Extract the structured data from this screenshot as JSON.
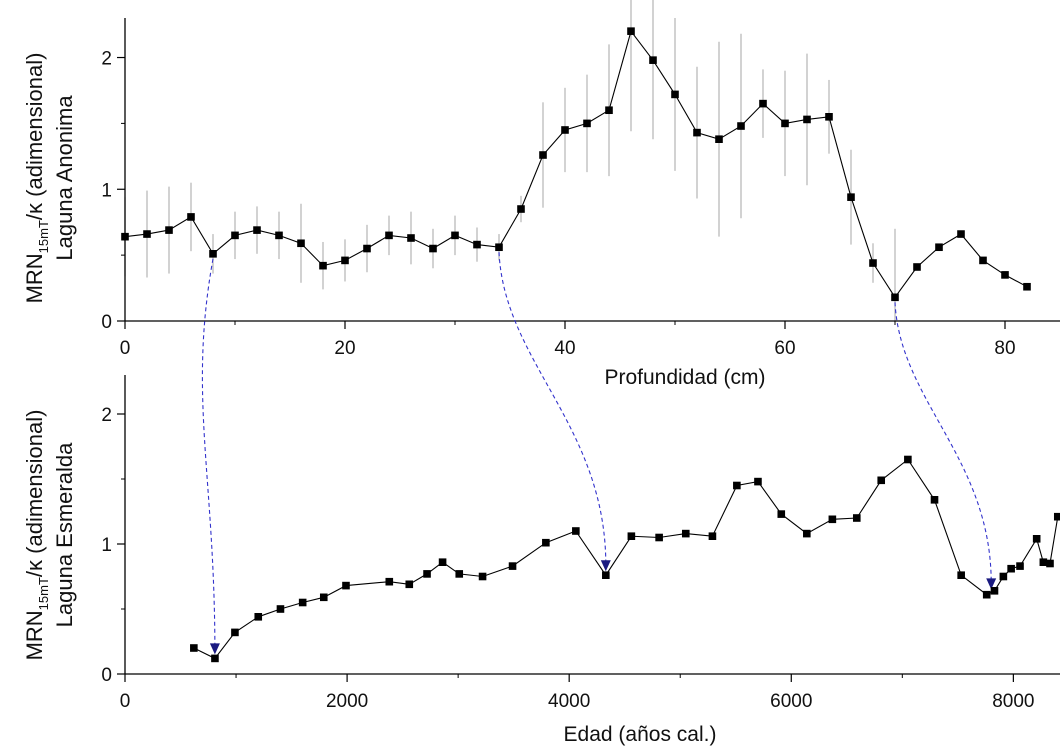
{
  "chart_data": [
    {
      "type": "line",
      "name": "top-panel",
      "ylabel": {
        "main": "MRN",
        "sub": "15mT",
        "rest": "/κ (adimensional)",
        "line2": "Laguna Anonima"
      },
      "xlabel": "Profundidad (cm)",
      "xlim": [
        0,
        85
      ],
      "ylim": [
        0,
        2.3
      ],
      "xticks": [
        0,
        20,
        40,
        60,
        80
      ],
      "xtick_labels": [
        "0",
        "20",
        "40",
        "60",
        "80"
      ],
      "yticks": [
        0,
        1,
        2
      ],
      "ytick_labels": [
        "0",
        "1",
        "2"
      ],
      "series": [
        {
          "x": [
            0,
            2,
            4,
            6,
            8,
            10,
            12,
            14,
            16,
            18,
            20,
            22,
            24,
            26,
            28,
            30,
            32,
            34,
            36,
            38,
            40,
            42,
            44,
            46,
            48,
            50,
            52,
            54,
            56,
            58,
            60,
            62,
            64,
            66,
            68,
            70,
            72,
            74,
            76,
            78,
            80,
            82
          ],
          "y": [
            0.64,
            0.66,
            0.69,
            0.79,
            0.51,
            0.65,
            0.69,
            0.65,
            0.59,
            0.42,
            0.46,
            0.55,
            0.65,
            0.63,
            0.55,
            0.65,
            0.58,
            0.56,
            0.85,
            1.26,
            1.45,
            1.5,
            1.6,
            2.2,
            1.98,
            1.72,
            1.43,
            1.38,
            1.48,
            1.65,
            1.5,
            1.53,
            1.55,
            0.94,
            0.44,
            0.18,
            0.41,
            0.56,
            0.66,
            0.46,
            0.35,
            0.26
          ],
          "err": [
            0.3,
            0.33,
            0.33,
            0.26,
            0.15,
            0.18,
            0.18,
            0.18,
            0.3,
            0.18,
            0.16,
            0.18,
            0.15,
            0.2,
            0.15,
            0.15,
            0.13,
            0.1,
            0.1,
            0.4,
            0.32,
            0.37,
            0.5,
            0.76,
            0.6,
            0.58,
            0.5,
            0.74,
            0.7,
            0.26,
            0.4,
            0.5,
            0.28,
            0.36,
            0.15,
            0.52,
            0,
            0,
            0,
            0,
            0,
            0
          ]
        }
      ]
    },
    {
      "type": "line",
      "name": "bottom-panel",
      "ylabel": {
        "main": "MRN",
        "sub": "15mT",
        "rest": "/κ (adimensional)",
        "line2": "Laguna Esmeralda"
      },
      "xlabel": "Edad  (años cal.)",
      "xlim": [
        0,
        8420
      ],
      "ylim": [
        0,
        2.3
      ],
      "xticks": [
        0,
        2000,
        4000,
        6000,
        8000
      ],
      "xtick_labels": [
        "0",
        "2000",
        "4000",
        "6000",
        "8000"
      ],
      "yticks": [
        0,
        1,
        2
      ],
      "ytick_labels": [
        "0",
        "1",
        "2"
      ],
      "series": [
        {
          "x": [
            620,
            810,
            990,
            1200,
            1400,
            1600,
            1790,
            1990,
            2380,
            2560,
            2720,
            2860,
            3010,
            3220,
            3490,
            3790,
            4060,
            4330,
            4560,
            4810,
            5050,
            5290,
            5510,
            5700,
            5910,
            6140,
            6370,
            6590,
            6810,
            7050,
            7290,
            7530,
            7760,
            7830,
            7910,
            7980,
            8060,
            8210,
            8270,
            8330,
            8400
          ],
          "y": [
            0.2,
            0.12,
            0.32,
            0.44,
            0.5,
            0.55,
            0.59,
            0.68,
            0.71,
            0.69,
            0.77,
            0.86,
            0.77,
            0.75,
            0.83,
            1.01,
            1.1,
            0.76,
            1.06,
            1.05,
            1.08,
            1.06,
            1.45,
            1.48,
            1.23,
            1.08,
            1.19,
            1.2,
            1.49,
            1.65,
            1.34,
            0.76,
            0.61,
            0.64,
            0.75,
            0.81,
            0.83,
            1.04,
            0.86,
            0.85,
            1.21
          ]
        }
      ]
    }
  ],
  "links": [
    {
      "from_x": 8,
      "from_y": 0.51,
      "to_x": 810,
      "to_y": 0.12
    },
    {
      "from_x": 34,
      "from_y": 0.56,
      "to_x": 4330,
      "to_y": 0.76
    },
    {
      "from_x": 70,
      "from_y": 0.18,
      "to_x": 7800,
      "to_y": 0.62
    }
  ],
  "colors": {
    "marker": "#000000",
    "line": "#000000",
    "errorbar": "#b5b5b5",
    "link": "#3333cc",
    "arrow": "#1a1a80"
  }
}
